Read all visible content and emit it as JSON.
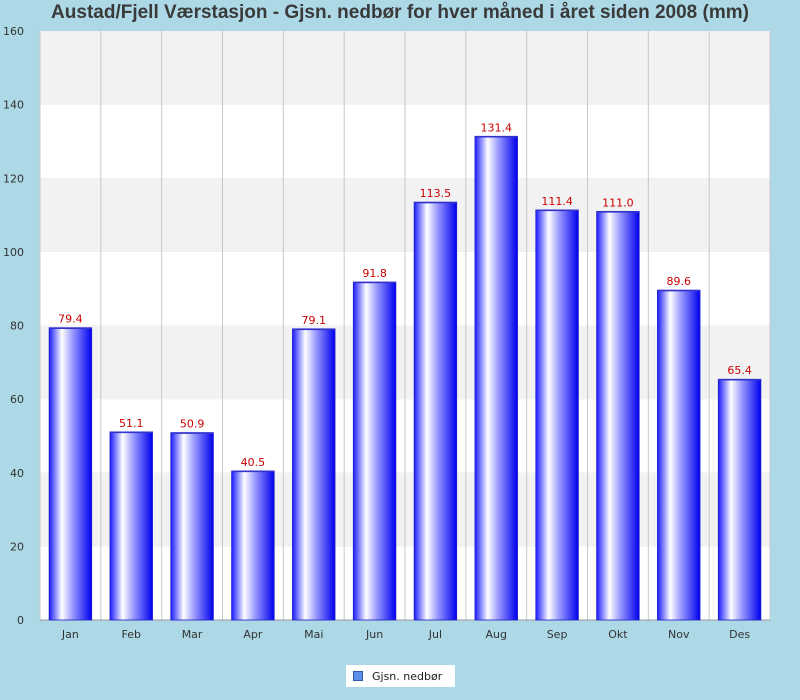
{
  "chart_data": {
    "type": "bar",
    "title": "Austad/Fjell Værstasjon - Gjsn. nedbør for hver måned i året siden 2008 (mm)",
    "categories": [
      "Jan",
      "Feb",
      "Mar",
      "Apr",
      "Mai",
      "Jun",
      "Jul",
      "Aug",
      "Sep",
      "Okt",
      "Nov",
      "Des"
    ],
    "series": [
      {
        "name": "Gjsn. nedbør",
        "values": [
          79.4,
          51.1,
          50.9,
          40.5,
          79.1,
          91.8,
          113.5,
          131.4,
          111.4,
          111.0,
          89.6,
          65.4
        ]
      }
    ],
    "value_labels": [
      "79.4",
      "51.1",
      "50.9",
      "40.5",
      "79.1",
      "91.8",
      "113.5",
      "131.4",
      "111.4",
      "111.0",
      "89.6",
      "65.4"
    ],
    "yticks": [
      "0",
      "20",
      "40",
      "60",
      "80",
      "100",
      "120",
      "140",
      "160"
    ],
    "ylim": [
      0,
      160
    ],
    "grid": true,
    "legend": "bottom-center",
    "colors": {
      "bar_dark": "#0000ff",
      "bar_light": "#ffffff",
      "value_label": "#cc0000",
      "background": "#add8e6"
    }
  }
}
